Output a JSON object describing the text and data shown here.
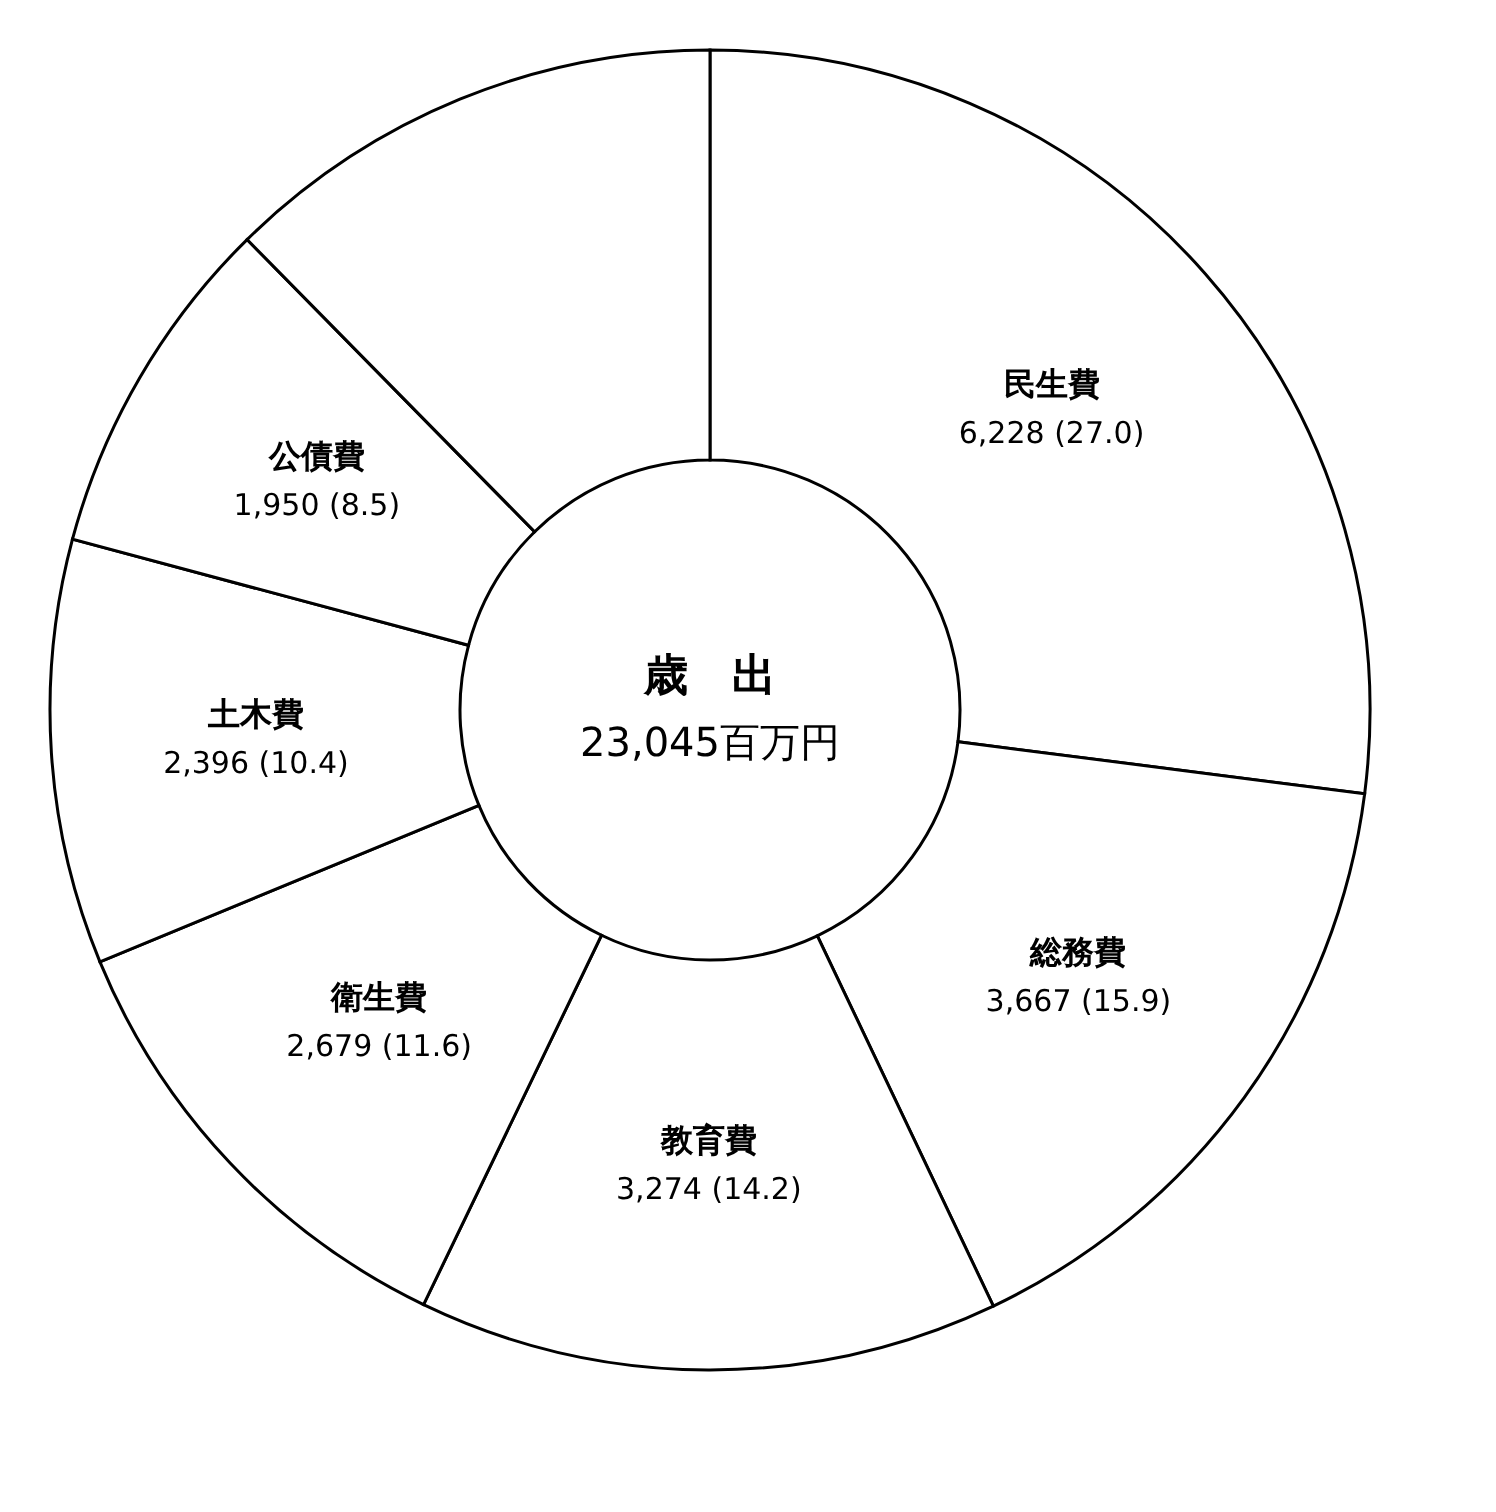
{
  "chart_data": {
    "type": "donut",
    "categories": [
      "民生費",
      "総務費",
      "教育費",
      "衛生費",
      "土木費",
      "公債費",
      null
    ],
    "values": [
      6228,
      3667,
      3274,
      2679,
      2396,
      1950,
      2851
    ],
    "value_labels": [
      "6,228 (27.0)",
      "3,667 (15.9)",
      "3,274 (14.2)",
      "2,679 (11.6)",
      "2,396 (10.4)",
      "1,950 (8.5)",
      null
    ],
    "colors": [
      "#ffffff",
      "#ffffff",
      "#ffffff",
      "#ffffff",
      "#ffffff",
      "#ffffff",
      "#ffffff"
    ],
    "annotations": [
      "歳　出",
      "23,045百万円"
    ],
    "legend": false
  }
}
